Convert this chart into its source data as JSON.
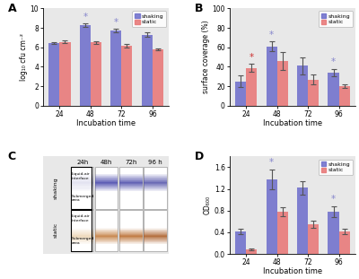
{
  "panel_A": {
    "label": "A",
    "x": [
      24,
      48,
      72,
      96
    ],
    "shaking": [
      6.45,
      8.25,
      7.7,
      7.3
    ],
    "static": [
      6.55,
      6.5,
      6.2,
      5.8
    ],
    "shaking_err": [
      0.12,
      0.18,
      0.18,
      0.2
    ],
    "static_err": [
      0.12,
      0.12,
      0.18,
      0.12
    ],
    "shaking_star": [
      false,
      true,
      true,
      false
    ],
    "static_star": [
      false,
      false,
      false,
      false
    ],
    "ylabel": "log₁₀ cfu cm⁻²",
    "xlabel": "Incubation time",
    "ylim": [
      0,
      10
    ],
    "yticks": [
      0,
      2,
      4,
      6,
      8,
      10
    ]
  },
  "panel_B": {
    "label": "B",
    "x": [
      24,
      48,
      72,
      96
    ],
    "shaking": [
      25,
      61,
      41,
      34
    ],
    "static": [
      39,
      46,
      27,
      20
    ],
    "shaking_err": [
      6,
      5,
      9,
      4
    ],
    "static_err": [
      4,
      9,
      5,
      2
    ],
    "shaking_star": [
      false,
      true,
      false,
      true
    ],
    "static_star": [
      true,
      false,
      false,
      false
    ],
    "ylabel": "surface coverage (%)",
    "xlabel": "Incubation time",
    "ylim": [
      0,
      100
    ],
    "yticks": [
      0,
      20,
      40,
      60,
      80,
      100
    ]
  },
  "panel_D": {
    "label": "D",
    "x": [
      24,
      48,
      72,
      96
    ],
    "shaking": [
      0.42,
      1.38,
      1.22,
      0.78
    ],
    "static": [
      0.08,
      0.78,
      0.55,
      0.42
    ],
    "shaking_err": [
      0.05,
      0.18,
      0.12,
      0.1
    ],
    "static_err": [
      0.02,
      0.09,
      0.07,
      0.05
    ],
    "shaking_star": [
      false,
      true,
      false,
      true
    ],
    "static_star": [
      false,
      false,
      false,
      false
    ],
    "ylabel": "OD₆₀₀",
    "xlabel": "Incubation time",
    "ylim": [
      0,
      1.8
    ],
    "yticks": [
      0.0,
      0.4,
      0.8,
      1.2,
      1.6
    ]
  },
  "shaking_color": "#7070cc",
  "static_color": "#e87878",
  "star_shaking_color": "#8888cc",
  "star_static_color": "#cc3333",
  "panel_bg": "#e8e8e8",
  "bar_width": 0.35,
  "C_shaking_colors": [
    "#b0b0d8",
    "#4040a8",
    "#4848a8",
    "#5050a8"
  ],
  "C_static_colors": [
    "#e0b880",
    "#c07838",
    "#b86828",
    "#a85820"
  ],
  "C_times": [
    "24h",
    "48h",
    "72h",
    "96 h"
  ],
  "C_row_labels": [
    "shaking",
    "static"
  ]
}
